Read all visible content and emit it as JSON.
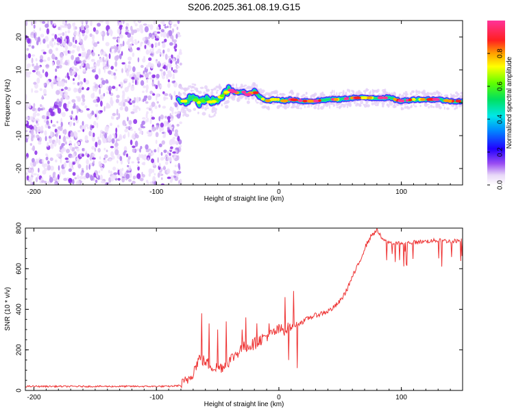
{
  "figure_title": "S206.2025.361.08.19.G15",
  "colors": {
    "snr_line": "#ee3333",
    "background": "#ffffff",
    "axis": "#000000"
  },
  "chart_data": [
    {
      "type": "heatmap",
      "title": "S206.2025.361.08.19.G15",
      "xlabel": "Height of straight line (km)",
      "ylabel": "Frequency (Hz)",
      "xlim": [
        -207,
        150
      ],
      "ylim": [
        -25,
        25
      ],
      "xticks": [
        -200,
        -100,
        0,
        100
      ],
      "yticks": [
        -20,
        -10,
        0,
        10,
        20
      ],
      "colorbar": {
        "label": "Normalized spectral amplitude",
        "range": [
          0,
          1
        ],
        "ticks": [
          0.0,
          0.2,
          0.4,
          0.6,
          0.8
        ],
        "tick_labels": [
          "0.0",
          "0.2",
          "0.4",
          "0.6",
          "0.8"
        ],
        "colormap": "rainbow (white-violet-blue-cyan-green-yellow-orange-red-magenta)"
      },
      "ridge": [
        {
          "x": -80,
          "y": 0.5
        },
        {
          "x": -75,
          "y": 0.5
        },
        {
          "x": -70,
          "y": 1.5
        },
        {
          "x": -65,
          "y": 0.0
        },
        {
          "x": -60,
          "y": 1.0
        },
        {
          "x": -55,
          "y": 0.0
        },
        {
          "x": -50,
          "y": 1.0
        },
        {
          "x": -45,
          "y": 2.5
        },
        {
          "x": -40,
          "y": 4.0
        },
        {
          "x": -35,
          "y": 3.0
        },
        {
          "x": -30,
          "y": 3.5
        },
        {
          "x": -25,
          "y": 2.5
        },
        {
          "x": -20,
          "y": 3.5
        },
        {
          "x": -15,
          "y": 1.5
        },
        {
          "x": -10,
          "y": 0.5
        },
        {
          "x": -5,
          "y": 1.0
        },
        {
          "x": 0,
          "y": 1.0
        },
        {
          "x": 5,
          "y": 0.5
        },
        {
          "x": 10,
          "y": 1.0
        },
        {
          "x": 20,
          "y": 0.5
        },
        {
          "x": 30,
          "y": 0.5
        },
        {
          "x": 40,
          "y": 1.0
        },
        {
          "x": 50,
          "y": 1.0
        },
        {
          "x": 60,
          "y": 1.5
        },
        {
          "x": 70,
          "y": 1.5
        },
        {
          "x": 80,
          "y": 1.5
        },
        {
          "x": 90,
          "y": 1.5
        },
        {
          "x": 100,
          "y": 0.5
        },
        {
          "x": 110,
          "y": 1.0
        },
        {
          "x": 120,
          "y": 1.0
        },
        {
          "x": 130,
          "y": 1.0
        },
        {
          "x": 140,
          "y": 0.5
        },
        {
          "x": 150,
          "y": 0.5
        }
      ],
      "noise_region_x": [
        -207,
        -80
      ]
    },
    {
      "type": "line",
      "xlabel": "Height of straight line (km)",
      "ylabel": "SNR (10 * v/v)",
      "xlim": [
        -207,
        150
      ],
      "ylim": [
        0,
        800
      ],
      "xticks": [
        -200,
        -100,
        0,
        100
      ],
      "yticks": [
        0,
        200,
        400,
        600,
        800
      ],
      "series": [
        {
          "x": [
            -207,
            -180,
            -150,
            -120,
            -100,
            -90,
            -80,
            -75,
            -70,
            -65,
            -60,
            -55,
            -50,
            -45,
            -40,
            -35,
            -30,
            -25,
            -20,
            -15,
            -10,
            -5,
            0,
            5,
            10,
            15,
            20,
            25,
            30,
            35,
            40,
            45,
            50,
            55,
            60,
            65,
            70,
            75,
            80,
            85,
            90,
            95,
            100,
            110,
            120,
            130,
            140,
            150
          ],
          "values": [
            20,
            20,
            20,
            20,
            20,
            20,
            25,
            50,
            90,
            160,
            140,
            120,
            110,
            120,
            150,
            180,
            210,
            220,
            230,
            250,
            270,
            280,
            300,
            300,
            310,
            330,
            340,
            360,
            370,
            380,
            390,
            410,
            440,
            490,
            560,
            620,
            700,
            760,
            790,
            740,
            730,
            725,
            725,
            730,
            735,
            740,
            735,
            740
          ]
        }
      ],
      "spikes": [
        {
          "x": -63,
          "y": 380
        },
        {
          "x": -57,
          "y": 330
        },
        {
          "x": -50,
          "y": 300
        },
        {
          "x": -43,
          "y": 340
        },
        {
          "x": -30,
          "y": 300
        },
        {
          "x": -27,
          "y": 360
        },
        {
          "x": -18,
          "y": 330
        },
        {
          "x": -8,
          "y": 330
        },
        {
          "x": 5,
          "y": 460
        },
        {
          "x": 12,
          "y": 490
        },
        {
          "x": 15,
          "y": 110
        },
        {
          "x": 8,
          "y": 150
        }
      ]
    }
  ]
}
